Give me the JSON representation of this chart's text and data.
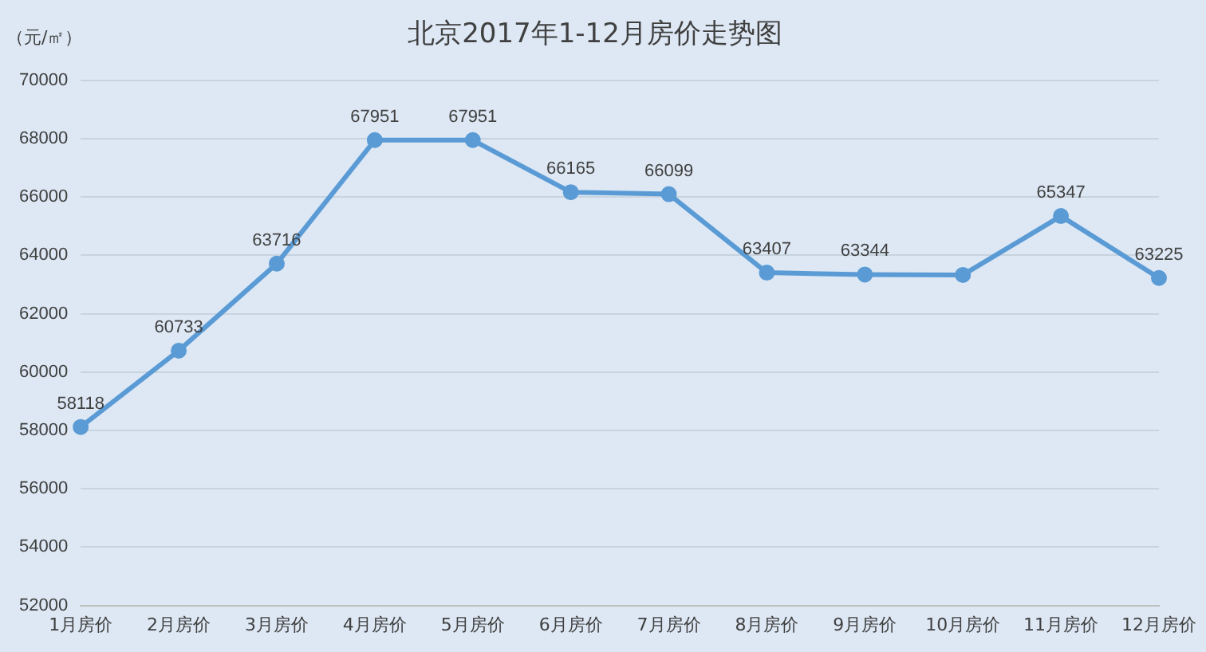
{
  "chart_data": {
    "type": "line",
    "title": "北京2017年1-12月房价走势图",
    "ylabel": "（元/㎡）",
    "categories": [
      "1月房价",
      "2月房价",
      "3月房价",
      "4月房价",
      "5月房价",
      "6月房价",
      "7月房价",
      "8月房价",
      "9月房价",
      "10月房价",
      "11月房价",
      "12月房价"
    ],
    "series": [
      {
        "color": "#5b9bd5",
        "values": [
          58118,
          60733,
          63716,
          67951,
          67951,
          66165,
          66099,
          63407,
          63344,
          63330,
          65347,
          63225
        ],
        "value_labels": [
          "58118",
          "60733",
          "63716",
          "67951",
          "67951",
          "66165",
          "66099",
          "63407",
          "63344",
          null,
          "65347",
          "63225"
        ]
      }
    ],
    "ylim": [
      52000,
      70000
    ],
    "yticks": [
      52000,
      54000,
      56000,
      58000,
      60000,
      62000,
      64000,
      66000,
      68000,
      70000
    ],
    "grid": "y",
    "legend": false,
    "marker": "circle",
    "line_style": "solid"
  }
}
